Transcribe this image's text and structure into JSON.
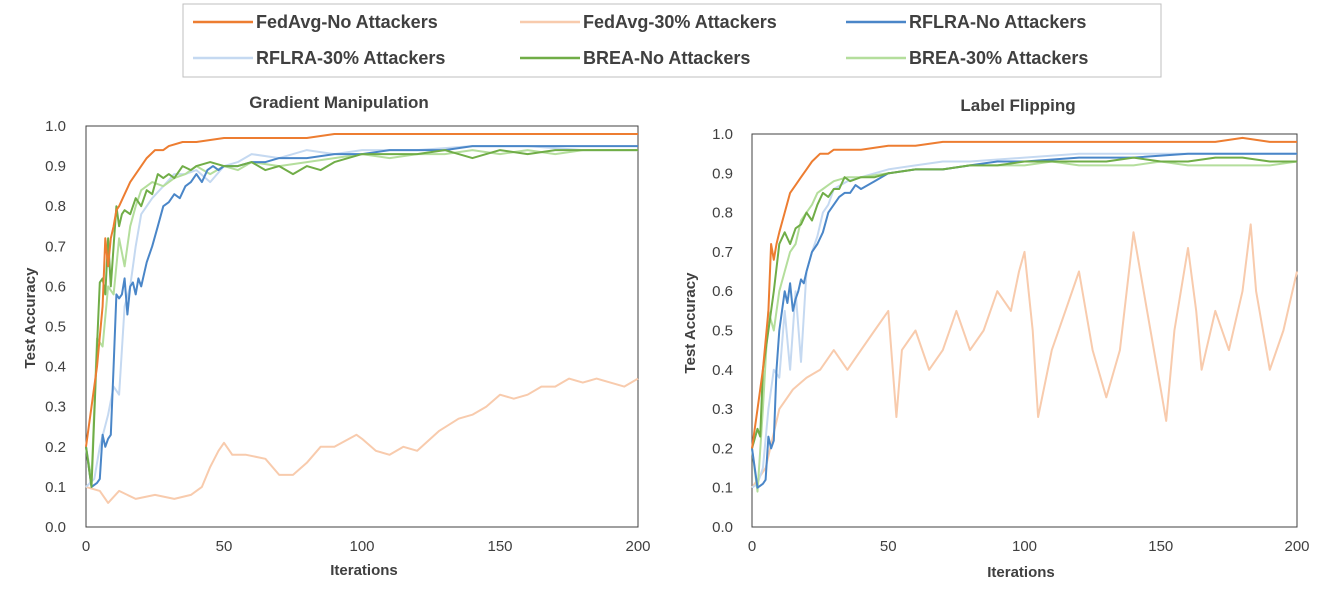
{
  "legend": {
    "items": [
      {
        "label": "FedAvg-No Attackers",
        "color": "#ED7D31"
      },
      {
        "label": "FedAvg-30% Attackers",
        "color": "#F8CBAD"
      },
      {
        "label": "RFLRA-No Attackers",
        "color": "#4A86C8"
      },
      {
        "label": "RFLRA-30% Attackers",
        "color": "#C5D9F1"
      },
      {
        "label": "BREA-No Attackers",
        "color": "#70AD47"
      },
      {
        "label": "BREA-30% Attackers",
        "color": "#B4DE9C"
      }
    ]
  },
  "chart_data": [
    {
      "type": "line",
      "title": "Gradient Manipulation",
      "xlabel": "Iterations",
      "ylabel": "Test Accuracy",
      "xlim": [
        0,
        200
      ],
      "ylim": [
        0.0,
        1.0
      ],
      "xticks": [
        "0",
        "50",
        "100",
        "150",
        "200"
      ],
      "yticks": [
        "0.0",
        "0.1",
        "0.2",
        "0.3",
        "0.4",
        "0.5",
        "0.6",
        "0.7",
        "0.8",
        "0.9",
        "1.0"
      ],
      "series": [
        {
          "name": "FedAvg-30% Attackers",
          "x": [
            0,
            5,
            8,
            12,
            18,
            25,
            32,
            38,
            42,
            45,
            48,
            50,
            53,
            58,
            65,
            70,
            75,
            80,
            85,
            90,
            98,
            100,
            105,
            110,
            115,
            120,
            128,
            135,
            140,
            145,
            150,
            155,
            160,
            165,
            170,
            175,
            180,
            185,
            190,
            195,
            200
          ],
          "y": [
            0.1,
            0.09,
            0.06,
            0.09,
            0.07,
            0.08,
            0.07,
            0.08,
            0.1,
            0.15,
            0.19,
            0.21,
            0.18,
            0.18,
            0.17,
            0.13,
            0.13,
            0.16,
            0.2,
            0.2,
            0.23,
            0.22,
            0.19,
            0.18,
            0.2,
            0.19,
            0.24,
            0.27,
            0.28,
            0.3,
            0.33,
            0.32,
            0.33,
            0.35,
            0.35,
            0.37,
            0.36,
            0.37,
            0.36,
            0.35,
            0.37
          ]
        },
        {
          "name": "RFLRA-30% Attackers",
          "x": [
            0,
            3,
            5,
            8,
            10,
            12,
            14,
            16,
            18,
            20,
            24,
            28,
            32,
            36,
            40,
            45,
            50,
            55,
            60,
            70,
            80,
            90,
            100,
            120,
            140,
            160,
            180,
            200
          ],
          "y": [
            0.1,
            0.12,
            0.2,
            0.28,
            0.35,
            0.33,
            0.55,
            0.6,
            0.7,
            0.78,
            0.82,
            0.85,
            0.88,
            0.88,
            0.89,
            0.86,
            0.9,
            0.91,
            0.93,
            0.92,
            0.94,
            0.93,
            0.94,
            0.94,
            0.95,
            0.95,
            0.94,
            0.94
          ]
        },
        {
          "name": "BREA-30% Attackers",
          "x": [
            0,
            2,
            4,
            6,
            8,
            10,
            12,
            14,
            16,
            18,
            20,
            24,
            28,
            32,
            36,
            40,
            45,
            50,
            55,
            60,
            70,
            80,
            90,
            100,
            110,
            120,
            130,
            140,
            150,
            160,
            170,
            180,
            190,
            200
          ],
          "y": [
            0.2,
            0.12,
            0.47,
            0.45,
            0.6,
            0.58,
            0.72,
            0.65,
            0.75,
            0.8,
            0.84,
            0.86,
            0.85,
            0.87,
            0.88,
            0.9,
            0.88,
            0.9,
            0.89,
            0.91,
            0.9,
            0.91,
            0.92,
            0.93,
            0.92,
            0.93,
            0.93,
            0.94,
            0.93,
            0.94,
            0.93,
            0.94,
            0.94,
            0.94
          ]
        },
        {
          "name": "RFLRA-No Attackers",
          "x": [
            0,
            2,
            4,
            5,
            6,
            7,
            8,
            9,
            10,
            11,
            12,
            13,
            14,
            15,
            16,
            17,
            18,
            19,
            20,
            22,
            24,
            26,
            28,
            30,
            32,
            34,
            36,
            38,
            40,
            42,
            44,
            46,
            48,
            50,
            55,
            60,
            65,
            70,
            80,
            90,
            100,
            110,
            120,
            130,
            140,
            150,
            160,
            170,
            180,
            190,
            200
          ],
          "y": [
            0.2,
            0.1,
            0.11,
            0.12,
            0.23,
            0.2,
            0.22,
            0.23,
            0.4,
            0.58,
            0.57,
            0.58,
            0.62,
            0.53,
            0.6,
            0.61,
            0.58,
            0.62,
            0.6,
            0.66,
            0.7,
            0.75,
            0.8,
            0.81,
            0.83,
            0.82,
            0.85,
            0.86,
            0.88,
            0.86,
            0.89,
            0.9,
            0.89,
            0.9,
            0.9,
            0.91,
            0.91,
            0.92,
            0.92,
            0.93,
            0.93,
            0.94,
            0.94,
            0.94,
            0.95,
            0.95,
            0.95,
            0.95,
            0.95,
            0.95,
            0.95
          ]
        },
        {
          "name": "BREA-No Attackers",
          "x": [
            0,
            2,
            4,
            5,
            6,
            7,
            8,
            9,
            10,
            11,
            12,
            13,
            14,
            16,
            18,
            20,
            22,
            24,
            26,
            28,
            30,
            32,
            35,
            38,
            40,
            45,
            50,
            55,
            60,
            65,
            70,
            75,
            80,
            85,
            90,
            95,
            100,
            110,
            120,
            130,
            140,
            150,
            160,
            170,
            180,
            190,
            200
          ],
          "y": [
            0.2,
            0.1,
            0.45,
            0.61,
            0.62,
            0.58,
            0.72,
            0.6,
            0.7,
            0.8,
            0.75,
            0.78,
            0.79,
            0.78,
            0.82,
            0.8,
            0.84,
            0.83,
            0.88,
            0.87,
            0.88,
            0.87,
            0.9,
            0.89,
            0.9,
            0.91,
            0.9,
            0.9,
            0.91,
            0.89,
            0.9,
            0.88,
            0.9,
            0.89,
            0.91,
            0.92,
            0.93,
            0.93,
            0.93,
            0.94,
            0.92,
            0.94,
            0.93,
            0.94,
            0.94,
            0.94,
            0.94
          ]
        },
        {
          "name": "FedAvg-No Attackers",
          "x": [
            0,
            2,
            4,
            6,
            7,
            8,
            9,
            10,
            11,
            12,
            14,
            16,
            18,
            20,
            22,
            25,
            28,
            30,
            35,
            40,
            50,
            60,
            70,
            80,
            90,
            100,
            110,
            120,
            130,
            140,
            150,
            160,
            170,
            180,
            190,
            200
          ],
          "y": [
            0.2,
            0.3,
            0.4,
            0.55,
            0.72,
            0.65,
            0.72,
            0.75,
            0.79,
            0.8,
            0.83,
            0.86,
            0.88,
            0.9,
            0.92,
            0.94,
            0.94,
            0.95,
            0.96,
            0.96,
            0.97,
            0.97,
            0.97,
            0.97,
            0.98,
            0.98,
            0.98,
            0.98,
            0.98,
            0.98,
            0.98,
            0.98,
            0.98,
            0.98,
            0.98,
            0.98
          ]
        }
      ]
    },
    {
      "type": "line",
      "title": "Label Flipping",
      "xlabel": "Iterations",
      "ylabel": "Test Accuracy",
      "xlim": [
        0,
        200
      ],
      "ylim": [
        0.0,
        1.0
      ],
      "xticks": [
        "0",
        "50",
        "100",
        "150",
        "200"
      ],
      "yticks": [
        "0.0",
        "0.1",
        "0.2",
        "0.3",
        "0.4",
        "0.5",
        "0.6",
        "0.7",
        "0.8",
        "0.9",
        "1.0"
      ],
      "series": [
        {
          "name": "FedAvg-30% Attackers",
          "x": [
            0,
            5,
            10,
            15,
            20,
            25,
            30,
            35,
            40,
            45,
            50,
            53,
            55,
            60,
            65,
            70,
            75,
            80,
            85,
            90,
            95,
            98,
            100,
            103,
            105,
            110,
            115,
            120,
            125,
            130,
            135,
            140,
            145,
            150,
            152,
            155,
            160,
            163,
            165,
            170,
            175,
            180,
            183,
            185,
            190,
            195,
            200
          ],
          "y": [
            0.1,
            0.15,
            0.3,
            0.35,
            0.38,
            0.4,
            0.45,
            0.4,
            0.45,
            0.5,
            0.55,
            0.28,
            0.45,
            0.5,
            0.4,
            0.45,
            0.55,
            0.45,
            0.5,
            0.6,
            0.55,
            0.65,
            0.7,
            0.5,
            0.28,
            0.45,
            0.55,
            0.65,
            0.45,
            0.33,
            0.45,
            0.75,
            0.55,
            0.35,
            0.27,
            0.5,
            0.71,
            0.55,
            0.4,
            0.55,
            0.45,
            0.6,
            0.77,
            0.6,
            0.4,
            0.5,
            0.65
          ]
        },
        {
          "name": "RFLRA-30% Attackers",
          "x": [
            0,
            2,
            4,
            6,
            8,
            10,
            12,
            14,
            16,
            18,
            20,
            22,
            24,
            26,
            28,
            30,
            35,
            40,
            50,
            60,
            70,
            80,
            100,
            120,
            140,
            160,
            180,
            200
          ],
          "y": [
            0.1,
            0.11,
            0.15,
            0.3,
            0.4,
            0.38,
            0.55,
            0.4,
            0.6,
            0.42,
            0.65,
            0.7,
            0.74,
            0.8,
            0.82,
            0.86,
            0.88,
            0.89,
            0.91,
            0.92,
            0.93,
            0.93,
            0.94,
            0.95,
            0.95,
            0.95,
            0.95,
            0.95
          ]
        },
        {
          "name": "BREA-30% Attackers",
          "x": [
            0,
            2,
            4,
            6,
            8,
            10,
            12,
            14,
            16,
            18,
            20,
            22,
            24,
            26,
            28,
            30,
            35,
            40,
            50,
            60,
            70,
            80,
            90,
            100,
            110,
            120,
            130,
            140,
            150,
            160,
            170,
            180,
            190,
            200
          ],
          "y": [
            0.2,
            0.09,
            0.3,
            0.55,
            0.5,
            0.6,
            0.65,
            0.7,
            0.72,
            0.78,
            0.8,
            0.82,
            0.85,
            0.86,
            0.87,
            0.88,
            0.89,
            0.89,
            0.9,
            0.91,
            0.91,
            0.92,
            0.92,
            0.92,
            0.93,
            0.92,
            0.92,
            0.92,
            0.93,
            0.92,
            0.92,
            0.92,
            0.92,
            0.93
          ]
        },
        {
          "name": "RFLRA-No Attackers",
          "x": [
            0,
            2,
            4,
            5,
            6,
            7,
            8,
            9,
            10,
            11,
            12,
            13,
            14,
            15,
            16,
            17,
            18,
            19,
            20,
            22,
            24,
            26,
            28,
            30,
            32,
            34,
            36,
            38,
            40,
            45,
            50,
            60,
            70,
            80,
            90,
            100,
            120,
            140,
            160,
            180,
            200
          ],
          "y": [
            0.2,
            0.1,
            0.11,
            0.12,
            0.23,
            0.2,
            0.22,
            0.4,
            0.5,
            0.55,
            0.6,
            0.57,
            0.62,
            0.55,
            0.58,
            0.6,
            0.63,
            0.62,
            0.65,
            0.7,
            0.72,
            0.75,
            0.8,
            0.82,
            0.84,
            0.85,
            0.85,
            0.87,
            0.86,
            0.88,
            0.9,
            0.91,
            0.91,
            0.92,
            0.93,
            0.93,
            0.94,
            0.94,
            0.95,
            0.95,
            0.95
          ]
        },
        {
          "name": "BREA-No Attackers",
          "x": [
            0,
            2,
            3,
            4,
            6,
            8,
            10,
            12,
            14,
            16,
            18,
            20,
            22,
            24,
            26,
            28,
            30,
            32,
            34,
            36,
            40,
            45,
            50,
            60,
            70,
            80,
            90,
            100,
            110,
            120,
            130,
            140,
            150,
            160,
            170,
            180,
            190,
            200
          ],
          "y": [
            0.2,
            0.25,
            0.23,
            0.4,
            0.5,
            0.6,
            0.72,
            0.75,
            0.72,
            0.76,
            0.77,
            0.8,
            0.78,
            0.82,
            0.85,
            0.84,
            0.86,
            0.86,
            0.89,
            0.88,
            0.89,
            0.89,
            0.9,
            0.91,
            0.91,
            0.92,
            0.92,
            0.93,
            0.93,
            0.93,
            0.93,
            0.94,
            0.93,
            0.93,
            0.94,
            0.94,
            0.93,
            0.93
          ]
        },
        {
          "name": "FedAvg-No Attackers",
          "x": [
            0,
            2,
            4,
            6,
            7,
            8,
            9,
            10,
            12,
            14,
            16,
            18,
            20,
            22,
            25,
            28,
            30,
            35,
            40,
            50,
            60,
            70,
            80,
            90,
            100,
            110,
            120,
            130,
            140,
            150,
            160,
            170,
            180,
            190,
            200
          ],
          "y": [
            0.2,
            0.3,
            0.4,
            0.55,
            0.72,
            0.68,
            0.72,
            0.75,
            0.8,
            0.85,
            0.87,
            0.89,
            0.91,
            0.93,
            0.95,
            0.95,
            0.96,
            0.96,
            0.96,
            0.97,
            0.97,
            0.98,
            0.98,
            0.98,
            0.98,
            0.98,
            0.98,
            0.98,
            0.98,
            0.98,
            0.98,
            0.98,
            0.99,
            0.98,
            0.98
          ]
        }
      ]
    }
  ]
}
